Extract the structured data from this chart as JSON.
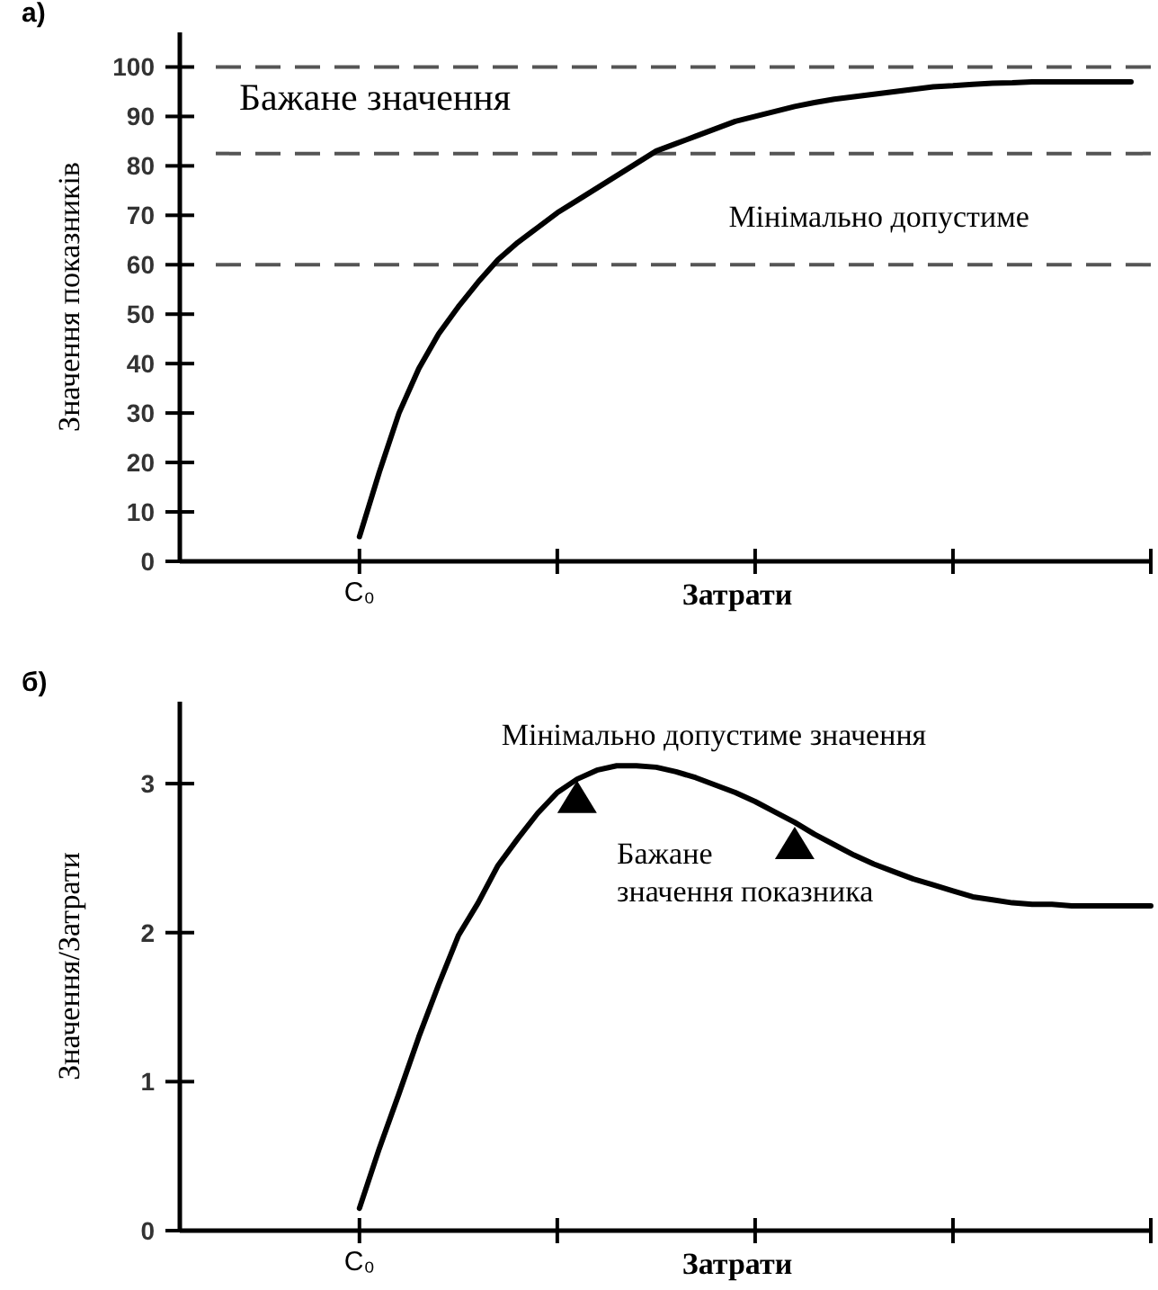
{
  "chart_data": [
    {
      "type": "line",
      "title": "а)",
      "xlabel": "Затрати",
      "ylabel": "Значення показників",
      "ylim": [
        0,
        107
      ],
      "yticks": [
        0,
        10,
        20,
        30,
        40,
        50,
        60,
        70,
        80,
        90,
        100
      ],
      "categories": [
        "C₀",
        null,
        null,
        null,
        null,
        null,
        null,
        null,
        null,
        null,
        null,
        null,
        null,
        null,
        null,
        null,
        null,
        null,
        null,
        null,
        null,
        null,
        null,
        null,
        null,
        null,
        null,
        null,
        null,
        null,
        null,
        null,
        null,
        null,
        null,
        null,
        null,
        null,
        null,
        null,
        null
      ],
      "series": [
        {
          "color": "#000000",
          "marker": "none",
          "line_style": "solid",
          "values": [
            5,
            18,
            30,
            39,
            46,
            51.5,
            56.5,
            61,
            64.5,
            67.5,
            70.5,
            73,
            75.5,
            78,
            80.5,
            83,
            84.5,
            86,
            87.5,
            89,
            90,
            91,
            92,
            92.8,
            93.5,
            94,
            94.5,
            95,
            95.5,
            96,
            96.2,
            96.5,
            96.7,
            96.8,
            97,
            97,
            97,
            97,
            97,
            97,
            null
          ]
        }
      ],
      "ref_lines": [
        {
          "axis": "y",
          "value": 100,
          "label": "Бажане значення",
          "color": "#555555",
          "line_style": "dashed"
        },
        {
          "axis": "y",
          "value": 82.5,
          "color": "#555555",
          "line_style": "dashed"
        },
        {
          "axis": "y",
          "value": 60,
          "color": "#555555",
          "line_style": "dashed"
        }
      ],
      "annotations": [
        "Мінімально допустиме"
      ]
    },
    {
      "type": "line",
      "title": "б)",
      "xlabel": "Затрати",
      "ylabel": "Значення/Затрати",
      "ylim": [
        0,
        3.55
      ],
      "yticks": [
        0,
        1,
        2,
        3
      ],
      "categories": [
        "C₀",
        null,
        null,
        null,
        null,
        null,
        null,
        null,
        null,
        null,
        null,
        null,
        null,
        null,
        null,
        null,
        null,
        null,
        null,
        null,
        null,
        null,
        null,
        null,
        null,
        null,
        null,
        null,
        null,
        null,
        null,
        null,
        null,
        null,
        null,
        null,
        null,
        null,
        null,
        null,
        null
      ],
      "series": [
        {
          "color": "#000000",
          "marker": "none",
          "line_style": "solid",
          "values": [
            0.15,
            0.55,
            0.92,
            1.3,
            1.65,
            1.98,
            2.2,
            2.45,
            2.63,
            2.8,
            2.94,
            3.03,
            3.09,
            3.12,
            3.12,
            3.11,
            3.08,
            3.04,
            2.99,
            2.94,
            2.88,
            2.81,
            2.74,
            2.66,
            2.59,
            2.52,
            2.46,
            2.41,
            2.36,
            2.32,
            2.28,
            2.24,
            2.22,
            2.2,
            2.19,
            2.19,
            2.18,
            2.18,
            2.18,
            2.18,
            2.18
          ]
        },
        {
          "type": "scatter",
          "color": "#000000",
          "marker": "triangle",
          "values": [
            null,
            null,
            null,
            null,
            null,
            null,
            null,
            null,
            null,
            null,
            null,
            2.9,
            null,
            null,
            null,
            null,
            null,
            null,
            null,
            null,
            null,
            null,
            2.59,
            null,
            null,
            null,
            null,
            null,
            null,
            null,
            null,
            null,
            null,
            null,
            null,
            null,
            null,
            null,
            null,
            null,
            null
          ]
        }
      ],
      "annotations": [
        "Мінімально допустиме значення",
        "Бажане\nзначення показника"
      ]
    }
  ]
}
